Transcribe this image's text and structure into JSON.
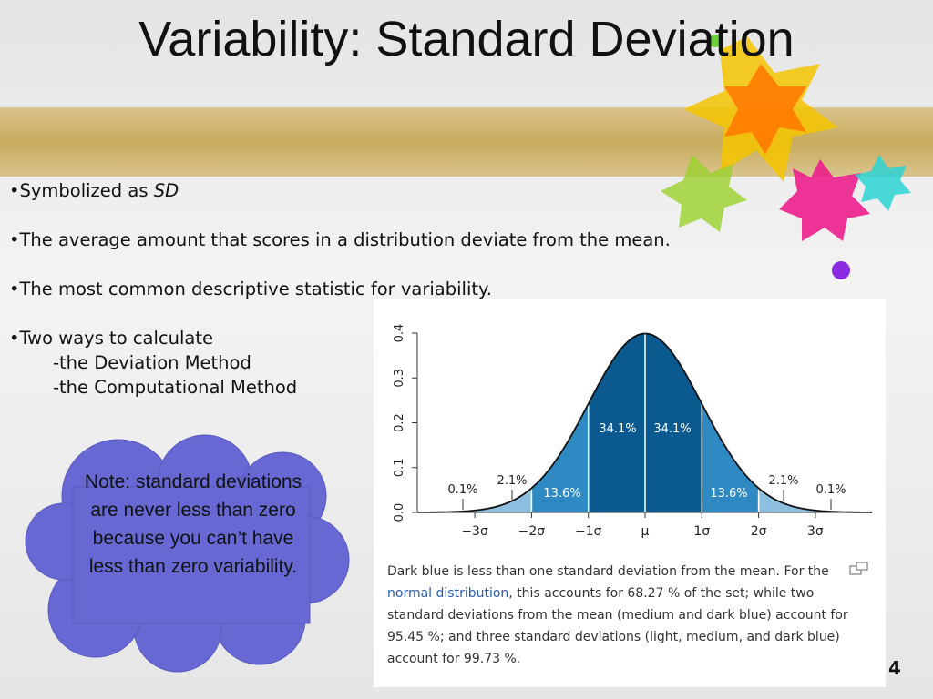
{
  "title": "Variability: Standard Deviation",
  "bullets": [
    {
      "text": "•Symbolized as ",
      "emphasis": "SD"
    },
    {
      "text": "•The average amount that scores in a distribution deviate from the mean."
    },
    {
      "text": "•The most common descriptive statistic for variability."
    },
    {
      "text": "•Two ways to calculate",
      "subitems": [
        "-the Deviation Method",
        "-the Computational Method"
      ]
    }
  ],
  "note": "Note: standard deviations are never less than zero because you can’t have less than zero variability.",
  "figure": {
    "y_ticks": [
      "0.0",
      "0.1",
      "0.2",
      "0.3",
      "0.4"
    ],
    "x_labels": [
      "−3σ",
      "−2σ",
      "−1σ",
      "μ",
      "1σ",
      "2σ",
      "3σ"
    ],
    "region_labels": [
      "0.1%",
      "2.1%",
      "13.6%",
      "34.1%",
      "34.1%",
      "13.6%",
      "2.1%",
      "0.1%"
    ],
    "caption": {
      "before": "Dark blue is less than one standard deviation from the mean. For the ",
      "link": "normal distribution",
      "after": ", this accounts for 68.27 % of the set; while two standard deviations from the mean (medium and dark blue) account for 95.45 %; and three standard deviations (light, medium, and dark blue) account for 99.73 %."
    }
  },
  "page_number": "4"
}
